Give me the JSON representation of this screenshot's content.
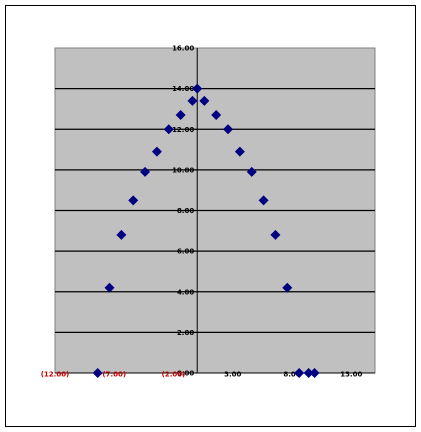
{
  "chart_data": {
    "type": "scatter",
    "title": "",
    "xlabel": "",
    "ylabel": "",
    "xlim": [
      -12,
      15
    ],
    "ylim": [
      0,
      16
    ],
    "grid": true,
    "legend": "none",
    "colors": {
      "plot_area": "#c0c0c0",
      "marker": "#000080",
      "negative_tick_label": "#cc0000",
      "positive_tick_label": "#000000"
    },
    "x_tick_labels": [
      "(12.00)",
      "(7.00)",
      "(2.00)",
      "3.00",
      "8.00",
      "13.00"
    ],
    "x_tick_values": [
      -12,
      -7,
      -2,
      3,
      8,
      13
    ],
    "y_tick_labels": [
      "0.00",
      "2.00",
      "4.00",
      "6.00",
      "8.00",
      "10.00",
      "12.00",
      "14.00",
      "16.00"
    ],
    "y_tick_values": [
      0,
      2,
      4,
      6,
      8,
      10,
      12,
      14,
      16
    ],
    "series": [
      {
        "marker": "diamond",
        "x": [
          -8.4,
          -7.4,
          -6.4,
          -5.4,
          -4.4,
          -3.4,
          -2.4,
          -1.4,
          -0.4,
          0.0,
          0.6,
          1.6,
          2.6,
          3.6,
          4.6,
          5.6,
          6.6,
          7.6,
          8.6,
          9.4,
          9.9
        ],
        "y": [
          0,
          4.2,
          6.8,
          8.5,
          9.9,
          10.9,
          12.0,
          12.7,
          13.4,
          14.0,
          13.4,
          12.7,
          12.0,
          10.9,
          9.9,
          8.5,
          6.8,
          4.2,
          0,
          0,
          0
        ]
      }
    ]
  }
}
